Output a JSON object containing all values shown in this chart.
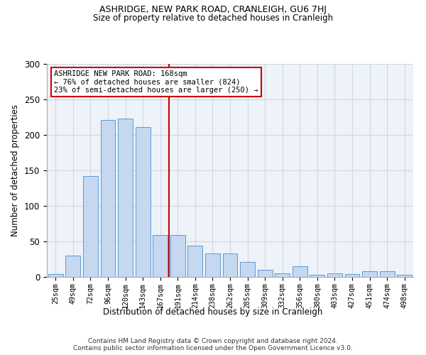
{
  "title": "ASHRIDGE, NEW PARK ROAD, CRANLEIGH, GU6 7HJ",
  "subtitle": "Size of property relative to detached houses in Cranleigh",
  "xlabel": "Distribution of detached houses by size in Cranleigh",
  "ylabel": "Number of detached properties",
  "categories": [
    "25sqm",
    "49sqm",
    "72sqm",
    "96sqm",
    "120sqm",
    "143sqm",
    "167sqm",
    "191sqm",
    "214sqm",
    "238sqm",
    "262sqm",
    "285sqm",
    "309sqm",
    "332sqm",
    "356sqm",
    "380sqm",
    "403sqm",
    "427sqm",
    "451sqm",
    "474sqm",
    "498sqm"
  ],
  "values": [
    4,
    30,
    142,
    221,
    223,
    211,
    59,
    59,
    44,
    33,
    33,
    21,
    10,
    5,
    15,
    3,
    5,
    4,
    8,
    8,
    3
  ],
  "bar_color": "#c5d8f0",
  "bar_edge_color": "#5b9bd5",
  "grid_color": "#d0d8e4",
  "bg_color": "#eef2f9",
  "vline_index": 6,
  "vline_color": "#cc0000",
  "annotation_text": "ASHRIDGE NEW PARK ROAD: 168sqm\n← 76% of detached houses are smaller (824)\n23% of semi-detached houses are larger (250) →",
  "annotation_box_color": "#ffffff",
  "annotation_box_edge": "#cc0000",
  "ylim": [
    0,
    300
  ],
  "yticks": [
    0,
    50,
    100,
    150,
    200,
    250,
    300
  ],
  "title_fontsize": 9,
  "subtitle_fontsize": 8.5,
  "footer_line1": "Contains HM Land Registry data © Crown copyright and database right 2024.",
  "footer_line2": "Contains public sector information licensed under the Open Government Licence v3.0."
}
